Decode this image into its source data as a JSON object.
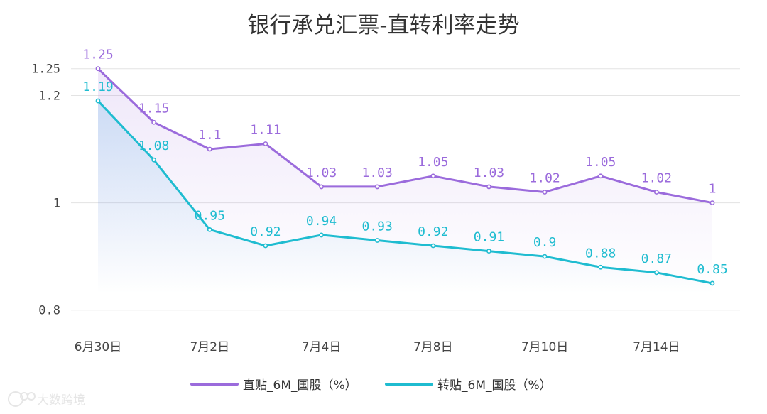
{
  "chart_data": {
    "type": "line",
    "title": "银行承兑汇票-直转利率走势",
    "x_ticks": [
      "6月30日",
      "7月2日",
      "7月4日",
      "7月8日",
      "7月10日",
      "7月14日"
    ],
    "x_tick_index": [
      0,
      2,
      4,
      6,
      8,
      10
    ],
    "y_ticks": [
      "0.8",
      "1",
      "1.2",
      "1.25"
    ],
    "ylim": [
      0.8,
      1.25
    ],
    "point_count": 12,
    "grid": true,
    "legend_position": "bottom",
    "series": [
      {
        "name": "直贴_6M_国股（%）",
        "color": "#9b6bdc",
        "values": [
          1.25,
          1.15,
          1.1,
          1.11,
          1.03,
          1.03,
          1.05,
          1.03,
          1.02,
          1.05,
          1.02,
          1
        ],
        "labels": [
          "1.25",
          "1.15",
          "1.1",
          "1.11",
          "1.03",
          "1.03",
          "1.05",
          "1.03",
          "1.02",
          "1.05",
          "1.02",
          "1"
        ]
      },
      {
        "name": "转贴_6M_国股（%）",
        "color": "#1fbcd0",
        "values": [
          1.19,
          1.08,
          0.95,
          0.92,
          0.94,
          0.93,
          0.92,
          0.91,
          0.9,
          0.88,
          0.87,
          0.85
        ],
        "labels": [
          "1.19",
          "1.08",
          "0.95",
          "0.92",
          "0.94",
          "0.93",
          "0.92",
          "0.91",
          "0.9",
          "0.88",
          "0.87",
          "0.85"
        ]
      }
    ]
  },
  "watermark": {
    "text": "大数跨境",
    "logo_text": "LOGO"
  }
}
